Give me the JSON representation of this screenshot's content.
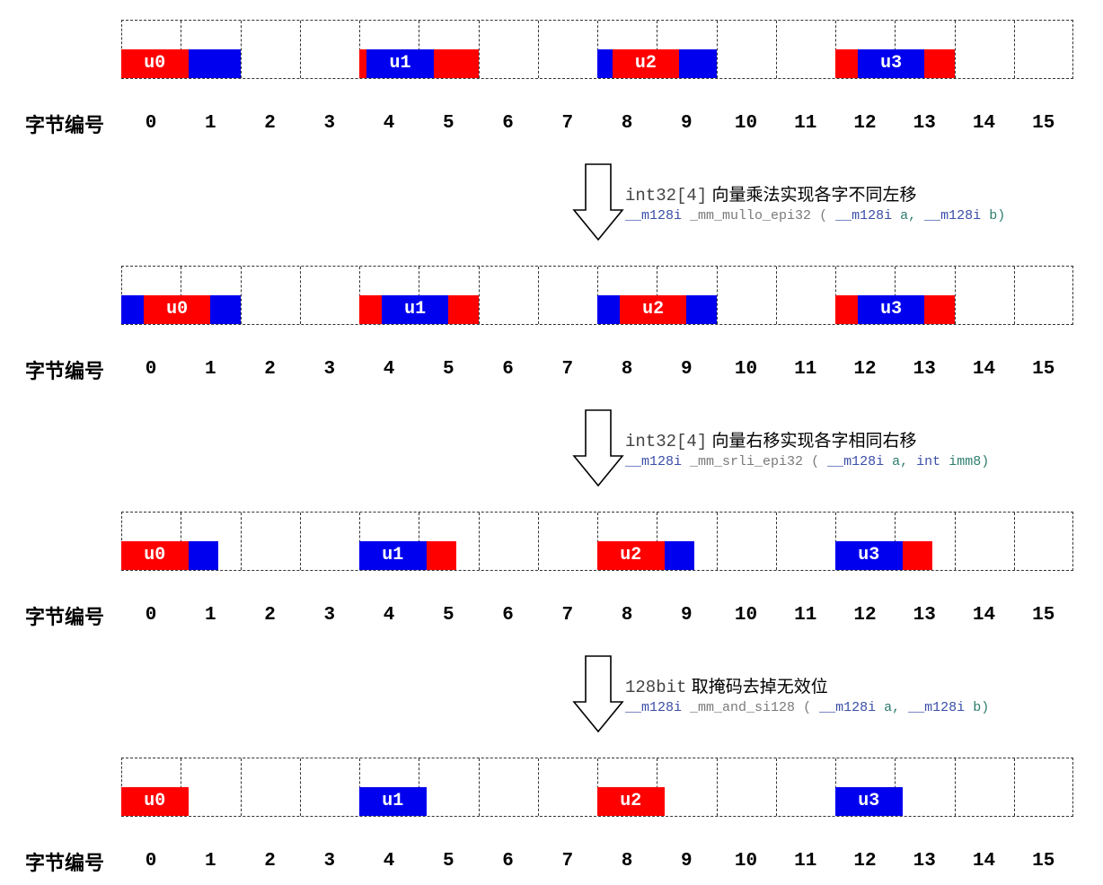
{
  "colors": {
    "red": "#ff0000",
    "blue": "#0000ee"
  },
  "axis_title": "字节编号",
  "byte_labels": [
    "0",
    "1",
    "2",
    "3",
    "4",
    "5",
    "6",
    "7",
    "8",
    "9",
    "10",
    "11",
    "12",
    "13",
    "14",
    "15"
  ],
  "stages": [
    {
      "segments": [
        {
          "start": 0,
          "end": 1.125,
          "color": "red",
          "label": "u0"
        },
        {
          "start": 1.125,
          "end": 2,
          "color": "blue",
          "label": ""
        },
        {
          "start": 4,
          "end": 4.125,
          "color": "red",
          "label": ""
        },
        {
          "start": 4.125,
          "end": 5.25,
          "color": "blue",
          "label": "u1"
        },
        {
          "start": 5.25,
          "end": 6,
          "color": "red",
          "label": ""
        },
        {
          "start": 8,
          "end": 8.25,
          "color": "blue",
          "label": ""
        },
        {
          "start": 8.25,
          "end": 9.375,
          "color": "red",
          "label": "u2"
        },
        {
          "start": 9.375,
          "end": 10,
          "color": "blue",
          "label": ""
        },
        {
          "start": 12,
          "end": 12.375,
          "color": "red",
          "label": ""
        },
        {
          "start": 12.375,
          "end": 13.5,
          "color": "blue",
          "label": "u3"
        },
        {
          "start": 13.5,
          "end": 14,
          "color": "red",
          "label": ""
        }
      ]
    },
    {
      "segments": [
        {
          "start": 0,
          "end": 0.375,
          "color": "blue",
          "label": ""
        },
        {
          "start": 0.375,
          "end": 1.5,
          "color": "red",
          "label": "u0"
        },
        {
          "start": 1.5,
          "end": 2,
          "color": "blue",
          "label": ""
        },
        {
          "start": 4,
          "end": 4.375,
          "color": "red",
          "label": ""
        },
        {
          "start": 4.375,
          "end": 5.5,
          "color": "blue",
          "label": "u1"
        },
        {
          "start": 5.5,
          "end": 6,
          "color": "red",
          "label": ""
        },
        {
          "start": 8,
          "end": 8.375,
          "color": "blue",
          "label": ""
        },
        {
          "start": 8.375,
          "end": 9.5,
          "color": "red",
          "label": "u2"
        },
        {
          "start": 9.5,
          "end": 10,
          "color": "blue",
          "label": ""
        },
        {
          "start": 12,
          "end": 12.375,
          "color": "red",
          "label": ""
        },
        {
          "start": 12.375,
          "end": 13.5,
          "color": "blue",
          "label": "u3"
        },
        {
          "start": 13.5,
          "end": 14,
          "color": "red",
          "label": ""
        }
      ]
    },
    {
      "segments": [
        {
          "start": 0,
          "end": 1.125,
          "color": "red",
          "label": "u0"
        },
        {
          "start": 1.125,
          "end": 1.625,
          "color": "blue",
          "label": ""
        },
        {
          "start": 4,
          "end": 5.125,
          "color": "blue",
          "label": "u1"
        },
        {
          "start": 5.125,
          "end": 5.625,
          "color": "red",
          "label": ""
        },
        {
          "start": 8,
          "end": 9.125,
          "color": "red",
          "label": "u2"
        },
        {
          "start": 9.125,
          "end": 9.625,
          "color": "blue",
          "label": ""
        },
        {
          "start": 12,
          "end": 13.125,
          "color": "blue",
          "label": "u3"
        },
        {
          "start": 13.125,
          "end": 13.625,
          "color": "red",
          "label": ""
        }
      ]
    },
    {
      "segments": [
        {
          "start": 0,
          "end": 1.125,
          "color": "red",
          "label": "u0"
        },
        {
          "start": 4,
          "end": 5.125,
          "color": "blue",
          "label": "u1"
        },
        {
          "start": 8,
          "end": 9.125,
          "color": "red",
          "label": "u2"
        },
        {
          "start": 12,
          "end": 13.125,
          "color": "blue",
          "label": "u3"
        }
      ]
    }
  ],
  "operations": [
    {
      "type": "int32[4]",
      "desc": "向量乘法实现各字不同左移",
      "sig_ret": "__m128i",
      "sig_fn": "_mm_mullo_epi32",
      "sig_open": "(",
      "sig_t1": "__m128i",
      "sig_p1": "a,",
      "sig_t2": "__m128i",
      "sig_p2": "b)"
    },
    {
      "type": "int32[4]",
      "desc": "向量右移实现各字相同右移",
      "sig_ret": "__m128i",
      "sig_fn": "_mm_srli_epi32",
      "sig_open": "(",
      "sig_t1": "__m128i",
      "sig_p1": "a,",
      "sig_t2": "int",
      "sig_p2": "imm8)"
    },
    {
      "type": "128bit",
      "desc": "取掩码去掉无效位",
      "sig_ret": "__m128i",
      "sig_fn": "_mm_and_si128",
      "sig_open": "(",
      "sig_t1": "__m128i",
      "sig_p1": "a,",
      "sig_t2": "__m128i",
      "sig_p2": "b)"
    }
  ]
}
